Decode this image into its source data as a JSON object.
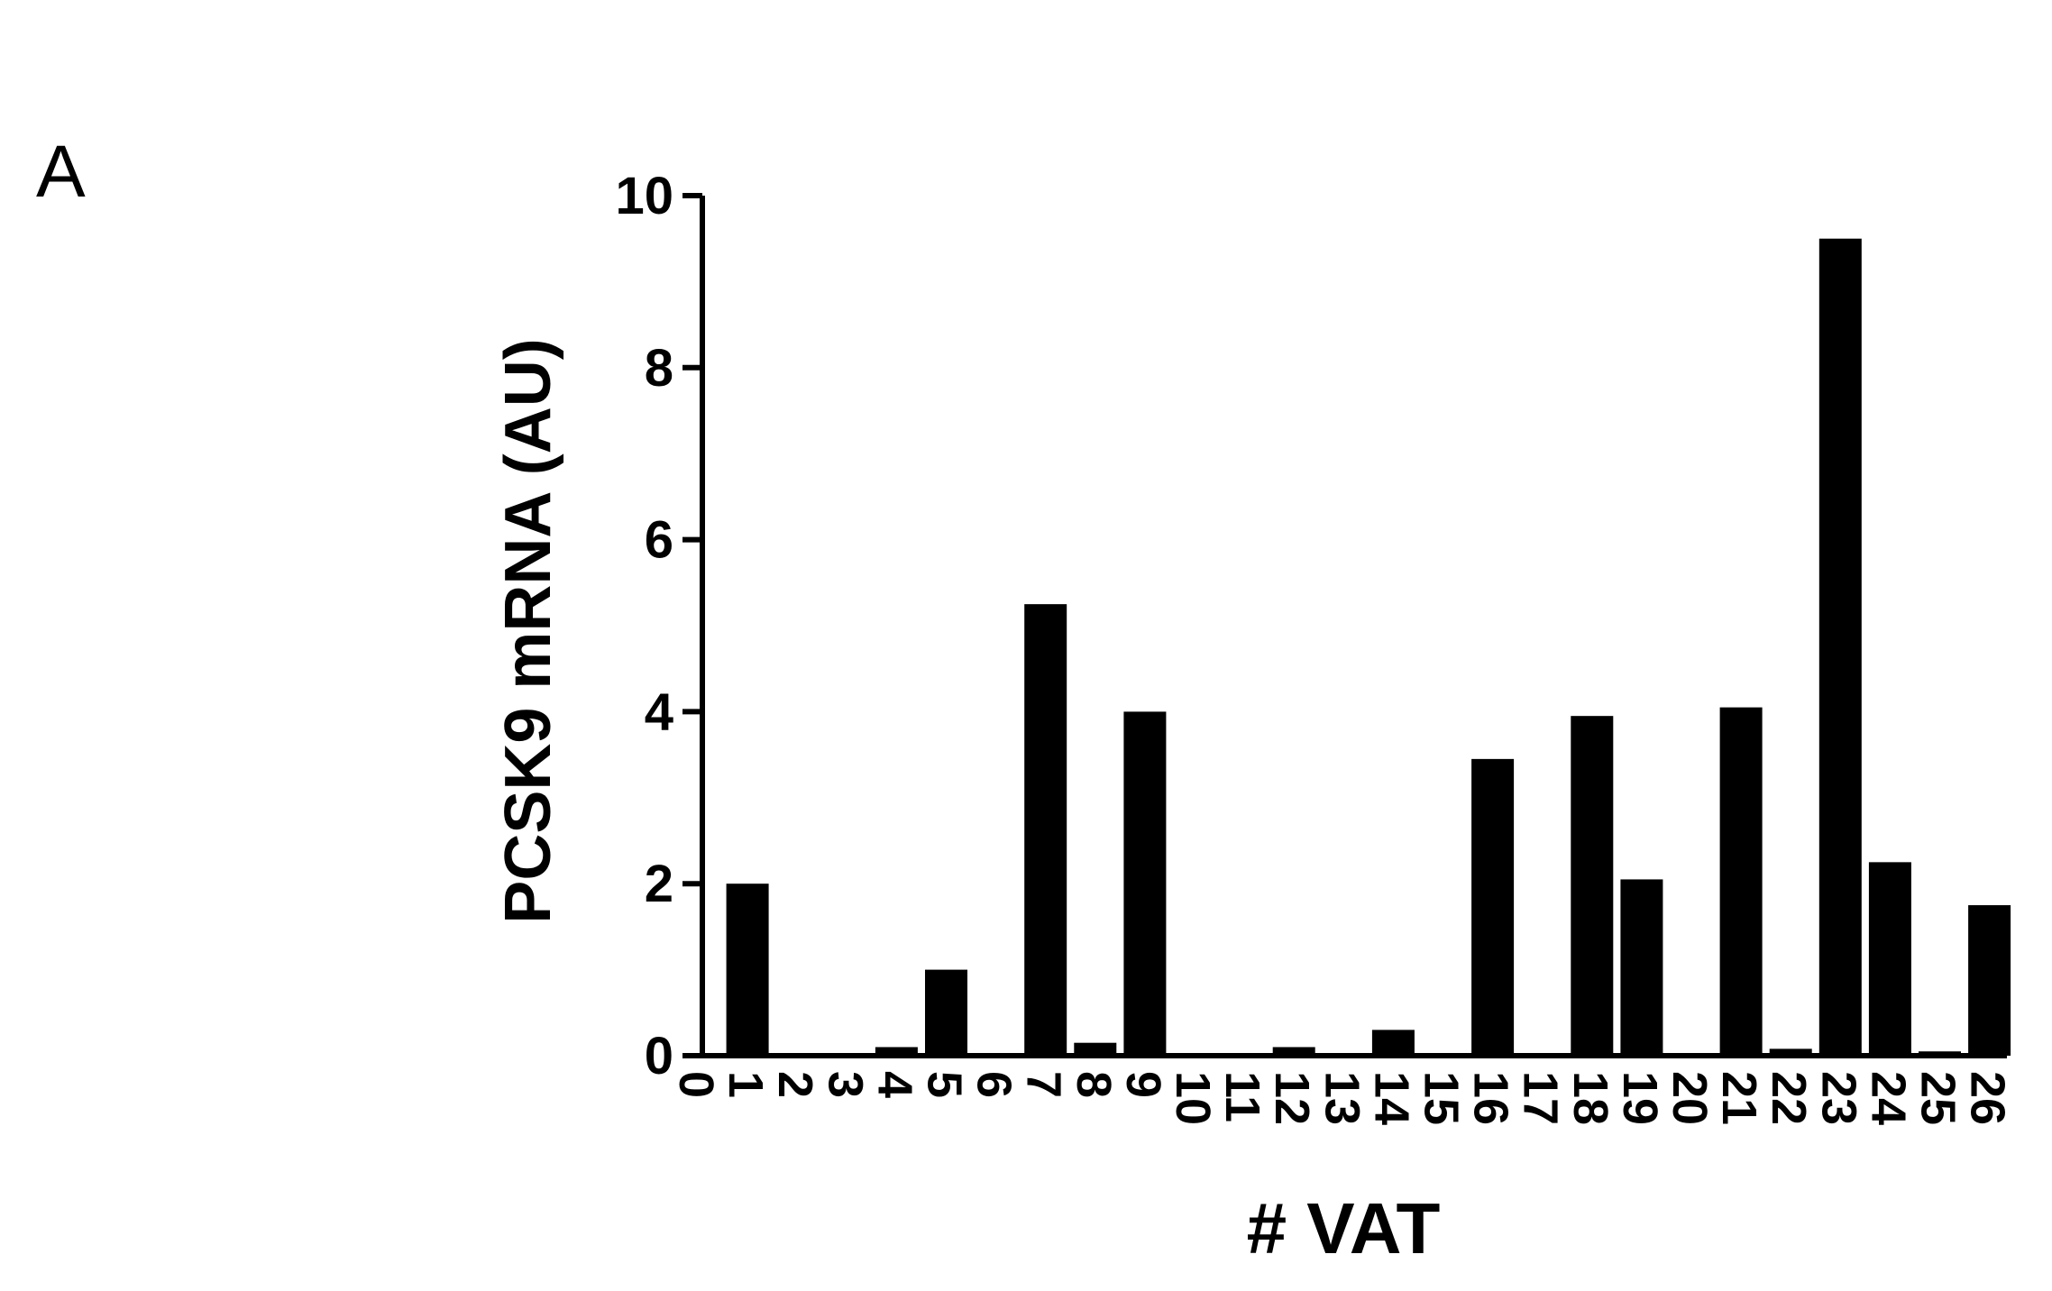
{
  "panel_label": "A",
  "chart_data": {
    "type": "bar",
    "y_label": "PCSK9 mRNA (AU)",
    "x_label": "# VAT",
    "categories": [
      "0",
      "1",
      "2",
      "3",
      "4",
      "5",
      "6",
      "7",
      "8",
      "9",
      "10",
      "11",
      "12",
      "13",
      "14",
      "15",
      "16",
      "17",
      "18",
      "19",
      "20",
      "21",
      "22",
      "23",
      "24",
      "25",
      "26"
    ],
    "values": [
      0,
      2.0,
      0,
      0,
      0.1,
      1.0,
      0,
      5.25,
      0.15,
      4.0,
      0,
      0,
      0.1,
      0,
      0.3,
      0,
      3.45,
      0,
      3.95,
      2.05,
      0,
      4.05,
      0.08,
      9.5,
      2.25,
      0.05,
      1.75
    ],
    "color": "#000000",
    "ylim": [
      0,
      10
    ],
    "yticks": [
      0,
      2,
      4,
      6,
      8,
      10
    ],
    "grid": false
  }
}
